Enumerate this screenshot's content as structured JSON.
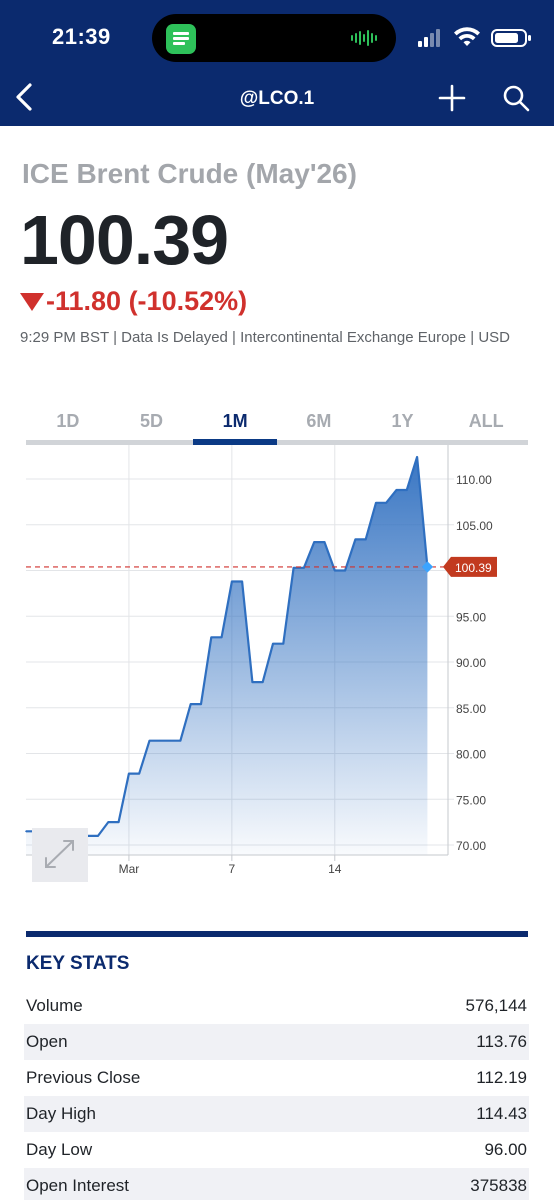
{
  "status_bar": {
    "time": "21:39"
  },
  "nav": {
    "title": "@LCO.1"
  },
  "quote": {
    "name": "ICE Brent Crude (May'26)",
    "price": "100.39",
    "change": "-11.80 (-10.52%)",
    "meta": "9:29 PM BST | Data Is Delayed | Intercontinental Exchange Europe | USD"
  },
  "tabs": [
    {
      "label": "1D"
    },
    {
      "label": "5D"
    },
    {
      "label": "1M",
      "active": true
    },
    {
      "label": "6M"
    },
    {
      "label": "1Y"
    },
    {
      "label": "ALL"
    }
  ],
  "colors": {
    "header": "#0b2a6e",
    "line": "#2f6fc0",
    "negative": "#d0312d",
    "last_price_marker": "#c23a1f"
  },
  "chart_data": {
    "type": "area",
    "ylim": [
      70,
      112
    ],
    "y_ticks": [
      "110.00",
      "105.00",
      "100.00",
      "95.00",
      "90.00",
      "85.00",
      "80.00",
      "75.00",
      "70.00"
    ],
    "x_ticks": [
      {
        "label": "Mar",
        "x": 10
      },
      {
        "label": "7",
        "x": 20
      },
      {
        "label": "14",
        "x": 30
      }
    ],
    "last_price": {
      "label": "100.39",
      "value": 100.39
    },
    "points": [
      {
        "x": 0,
        "y": 71.5
      },
      {
        "x": 1,
        "y": 71.5
      },
      {
        "x": 2,
        "y": 71.0
      },
      {
        "x": 3,
        "y": 71.0
      },
      {
        "x": 4,
        "y": 71.0
      },
      {
        "x": 5,
        "y": 71.0
      },
      {
        "x": 6,
        "y": 71.0
      },
      {
        "x": 7,
        "y": 71.0
      },
      {
        "x": 8,
        "y": 72.5
      },
      {
        "x": 9,
        "y": 72.5
      },
      {
        "x": 10,
        "y": 77.8
      },
      {
        "x": 11,
        "y": 77.8
      },
      {
        "x": 12,
        "y": 81.4
      },
      {
        "x": 13,
        "y": 81.4
      },
      {
        "x": 14,
        "y": 81.4
      },
      {
        "x": 15,
        "y": 81.4
      },
      {
        "x": 16,
        "y": 85.4
      },
      {
        "x": 17,
        "y": 85.4
      },
      {
        "x": 18,
        "y": 92.7
      },
      {
        "x": 19,
        "y": 92.7
      },
      {
        "x": 20,
        "y": 98.8
      },
      {
        "x": 21,
        "y": 98.8
      },
      {
        "x": 22,
        "y": 87.8
      },
      {
        "x": 23,
        "y": 87.8
      },
      {
        "x": 24,
        "y": 92.0
      },
      {
        "x": 25,
        "y": 92.0
      },
      {
        "x": 26,
        "y": 100.3
      },
      {
        "x": 27,
        "y": 100.3
      },
      {
        "x": 28,
        "y": 103.1
      },
      {
        "x": 29,
        "y": 103.1
      },
      {
        "x": 30,
        "y": 100.0
      },
      {
        "x": 31,
        "y": 100.0
      },
      {
        "x": 32,
        "y": 103.4
      },
      {
        "x": 33,
        "y": 103.4
      },
      {
        "x": 34,
        "y": 107.4
      },
      {
        "x": 35,
        "y": 107.4
      },
      {
        "x": 36,
        "y": 108.8
      },
      {
        "x": 37,
        "y": 108.8
      },
      {
        "x": 38,
        "y": 112.4
      },
      {
        "x": 39,
        "y": 100.39
      }
    ]
  },
  "key_stats": {
    "title": "KEY STATS",
    "rows": [
      {
        "label": "Volume",
        "value": "576,144"
      },
      {
        "label": "Open",
        "value": "113.76"
      },
      {
        "label": "Previous Close",
        "value": "112.19"
      },
      {
        "label": "Day High",
        "value": "114.43"
      },
      {
        "label": "Day Low",
        "value": "96.00"
      },
      {
        "label": "Open Interest",
        "value": "375838"
      }
    ]
  }
}
